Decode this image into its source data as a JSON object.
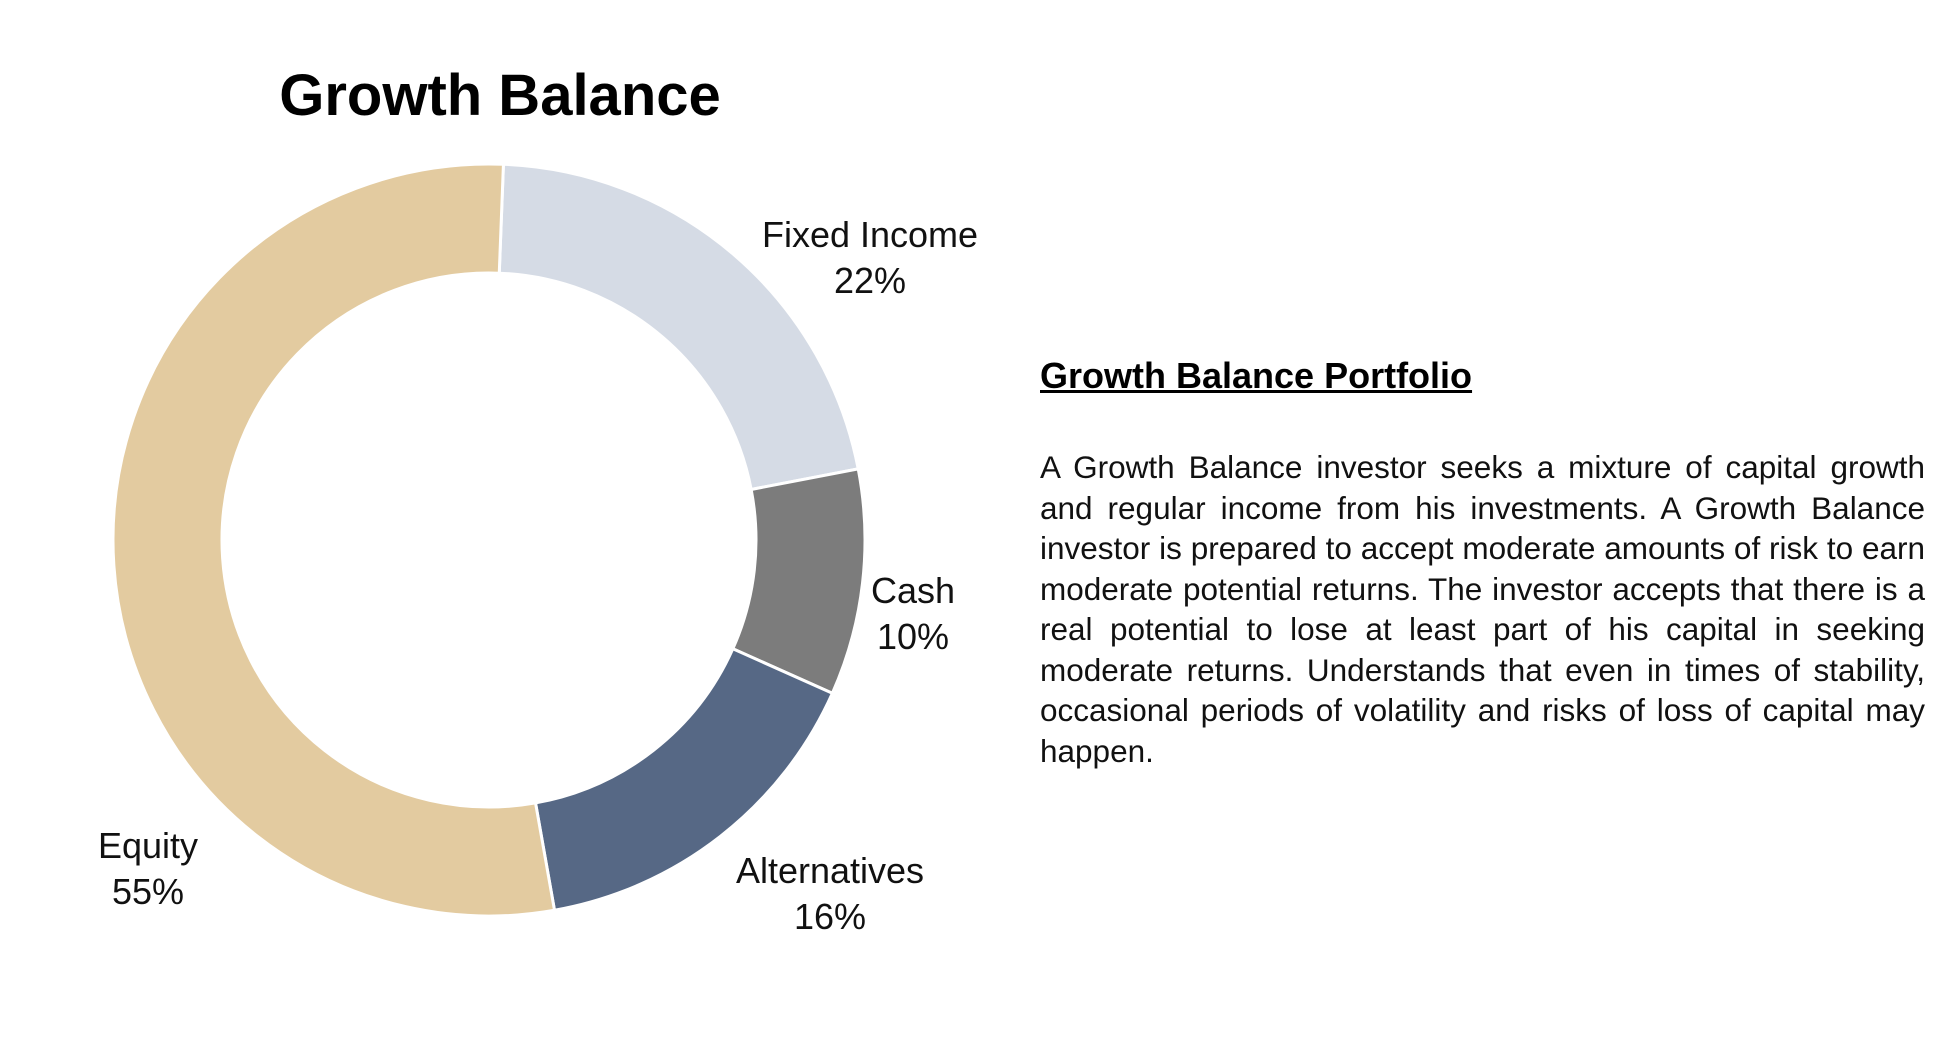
{
  "chart_data": {
    "type": "pie",
    "title": "Growth Balance",
    "categories": [
      "Fixed Income",
      "Cash",
      "Alternatives",
      "Equity"
    ],
    "values": [
      22,
      10,
      16,
      55
    ],
    "value_labels": [
      "22%",
      "10%",
      "16%",
      "55%"
    ],
    "colors": [
      "#d5dbe5",
      "#7c7c7c",
      "#566885",
      "#e3cba0"
    ],
    "donut": true
  },
  "description": {
    "heading": "Growth Balance Portfolio",
    "body": "A Growth Balance investor seeks a mixture of capital growth and regular income from his investments. A Growth Balance investor is prepared to accept moderate amounts of risk to earn moderate potential returns. The investor accepts that there is a real potential to lose at least part of his capital in seeking moderate returns. Understands that even in times of stability, occasional periods of volatility and risks of loss of capital may happen."
  }
}
